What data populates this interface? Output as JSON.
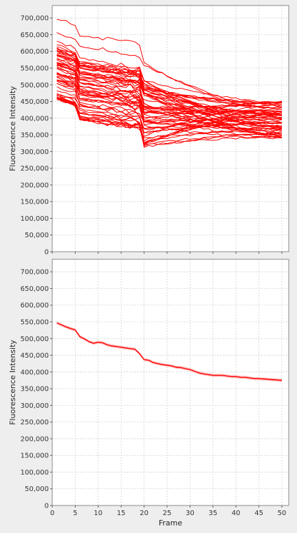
{
  "chart_data": [
    {
      "type": "line",
      "title": "",
      "xlabel": "",
      "ylabel": "Fluorescence Intensity",
      "xlim": [
        0,
        51.5
      ],
      "ylim": [
        0,
        737500
      ],
      "y_ticks": [
        0,
        50000,
        100000,
        150000,
        200000,
        250000,
        300000,
        350000,
        400000,
        450000,
        500000,
        550000,
        600000,
        650000,
        700000
      ],
      "y_tick_labels": [
        "0",
        "50,000",
        "100,000",
        "150,000",
        "200,000",
        "250,000",
        "300,000",
        "350,000",
        "400,000",
        "450,000",
        "500,000",
        "550,000",
        "600,000",
        "650,000",
        "700,000"
      ],
      "grid": true,
      "color": "#ff0000",
      "description_of_series": "many individual traces from frame 1 to 50",
      "series_generated": true,
      "series_count": 60
    },
    {
      "type": "line",
      "title": "",
      "xlabel": "Frame",
      "ylabel": "Fluorescence Intensity",
      "xlim": [
        0,
        51.5
      ],
      "ylim": [
        0,
        737500
      ],
      "x_ticks": [
        0,
        5,
        10,
        15,
        20,
        25,
        30,
        35,
        40,
        45,
        50
      ],
      "x_tick_labels": [
        "0",
        "5",
        "10",
        "15",
        "20",
        "25",
        "30",
        "35",
        "40",
        "45",
        "50"
      ],
      "y_ticks": [
        0,
        50000,
        100000,
        150000,
        200000,
        250000,
        300000,
        350000,
        400000,
        450000,
        500000,
        550000,
        600000,
        650000,
        700000
      ],
      "y_tick_labels": [
        "0",
        "50,000",
        "100,000",
        "150,000",
        "200,000",
        "250,000",
        "300,000",
        "350,000",
        "400,000",
        "450,000",
        "500,000",
        "550,000",
        "600,000",
        "650,000",
        "700,000"
      ],
      "grid": true,
      "color": "#ff0000",
      "band_color": "#ff9999",
      "x": [
        1,
        2,
        3,
        4,
        5,
        6,
        7,
        8,
        9,
        10,
        11,
        12,
        13,
        14,
        15,
        16,
        17,
        18,
        19,
        20,
        21,
        22,
        23,
        24,
        25,
        26,
        27,
        28,
        29,
        30,
        31,
        32,
        33,
        34,
        35,
        36,
        37,
        38,
        39,
        40,
        41,
        42,
        43,
        44,
        45,
        46,
        47,
        48,
        49,
        50
      ],
      "values": [
        547000,
        541000,
        535000,
        530000,
        526000,
        506000,
        499000,
        491000,
        486000,
        489000,
        487000,
        481000,
        478000,
        476000,
        474000,
        472000,
        470000,
        468000,
        455000,
        437000,
        435000,
        428000,
        425000,
        422000,
        420000,
        418000,
        414000,
        413000,
        410000,
        407000,
        402000,
        397000,
        394000,
        392000,
        390000,
        390000,
        390000,
        388000,
        386000,
        386000,
        384000,
        384000,
        382000,
        380000,
        380000,
        379000,
        378000,
        377000,
        376000,
        375000
      ],
      "band_halfwidth": 4500
    }
  ]
}
